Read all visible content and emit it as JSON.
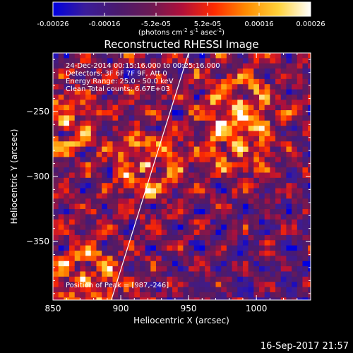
{
  "chart_data": {
    "type": "heatmap",
    "title": "Reconstructed RHESSI Image",
    "xlabel": "Heliocentric X (arcsec)",
    "ylabel": "Heliocentric Y (arcsec)",
    "xlim": [
      850,
      1040
    ],
    "ylim": [
      -395,
      -205
    ],
    "x_ticks": [
      850,
      900,
      950,
      1000
    ],
    "y_ticks": [
      -250,
      -300,
      -350
    ],
    "colorbar": {
      "min": -0.00026,
      "max": 0.00026,
      "ticks": [
        "-0.00026",
        "-0.00016",
        "-5.2e-05",
        "5.2e-05",
        "0.00016",
        "0.00026"
      ],
      "unit_text": "(photons cm",
      "unit_sup1": "-2",
      "unit_mid": " s",
      "unit_sup2": "-1",
      "unit_end": " asec",
      "unit_sup3": "-2",
      "unit_close": ")",
      "palette": [
        "#0000e0",
        "#3a1c9a",
        "#4a1a6e",
        "#6a1a55",
        "#b0103a",
        "#ff2a00",
        "#ff8c00",
        "#ffd23a",
        "#ffffff"
      ]
    },
    "annotations": [
      "24-Dec-2014 00:15:16.000 to 00:25:16.000",
      "Detectors: 3F 6F 7F 9F, Att 0",
      "Energy Range: 25.0 - 50.0 keV",
      "Clean   Total counts: 6.67E+03"
    ],
    "peak_label": "Position of Peak = [987,-246]",
    "peak": [
      987,
      -246
    ],
    "sources": [
      {
        "x": 920,
        "y": -292,
        "level": 1.0
      },
      {
        "x": 858,
        "y": -258,
        "level": 0.85
      },
      {
        "x": 873,
        "y": -378,
        "level": 0.95
      },
      {
        "x": 988,
        "y": -275,
        "level": 0.92
      },
      {
        "x": 987,
        "y": -246,
        "level": 0.8
      }
    ],
    "limb_line": {
      "x": [
        893,
        950
      ],
      "y": [
        -395,
        -205
      ]
    }
  },
  "footer": {
    "timestamp": "16-Sep-2017 21:57"
  }
}
